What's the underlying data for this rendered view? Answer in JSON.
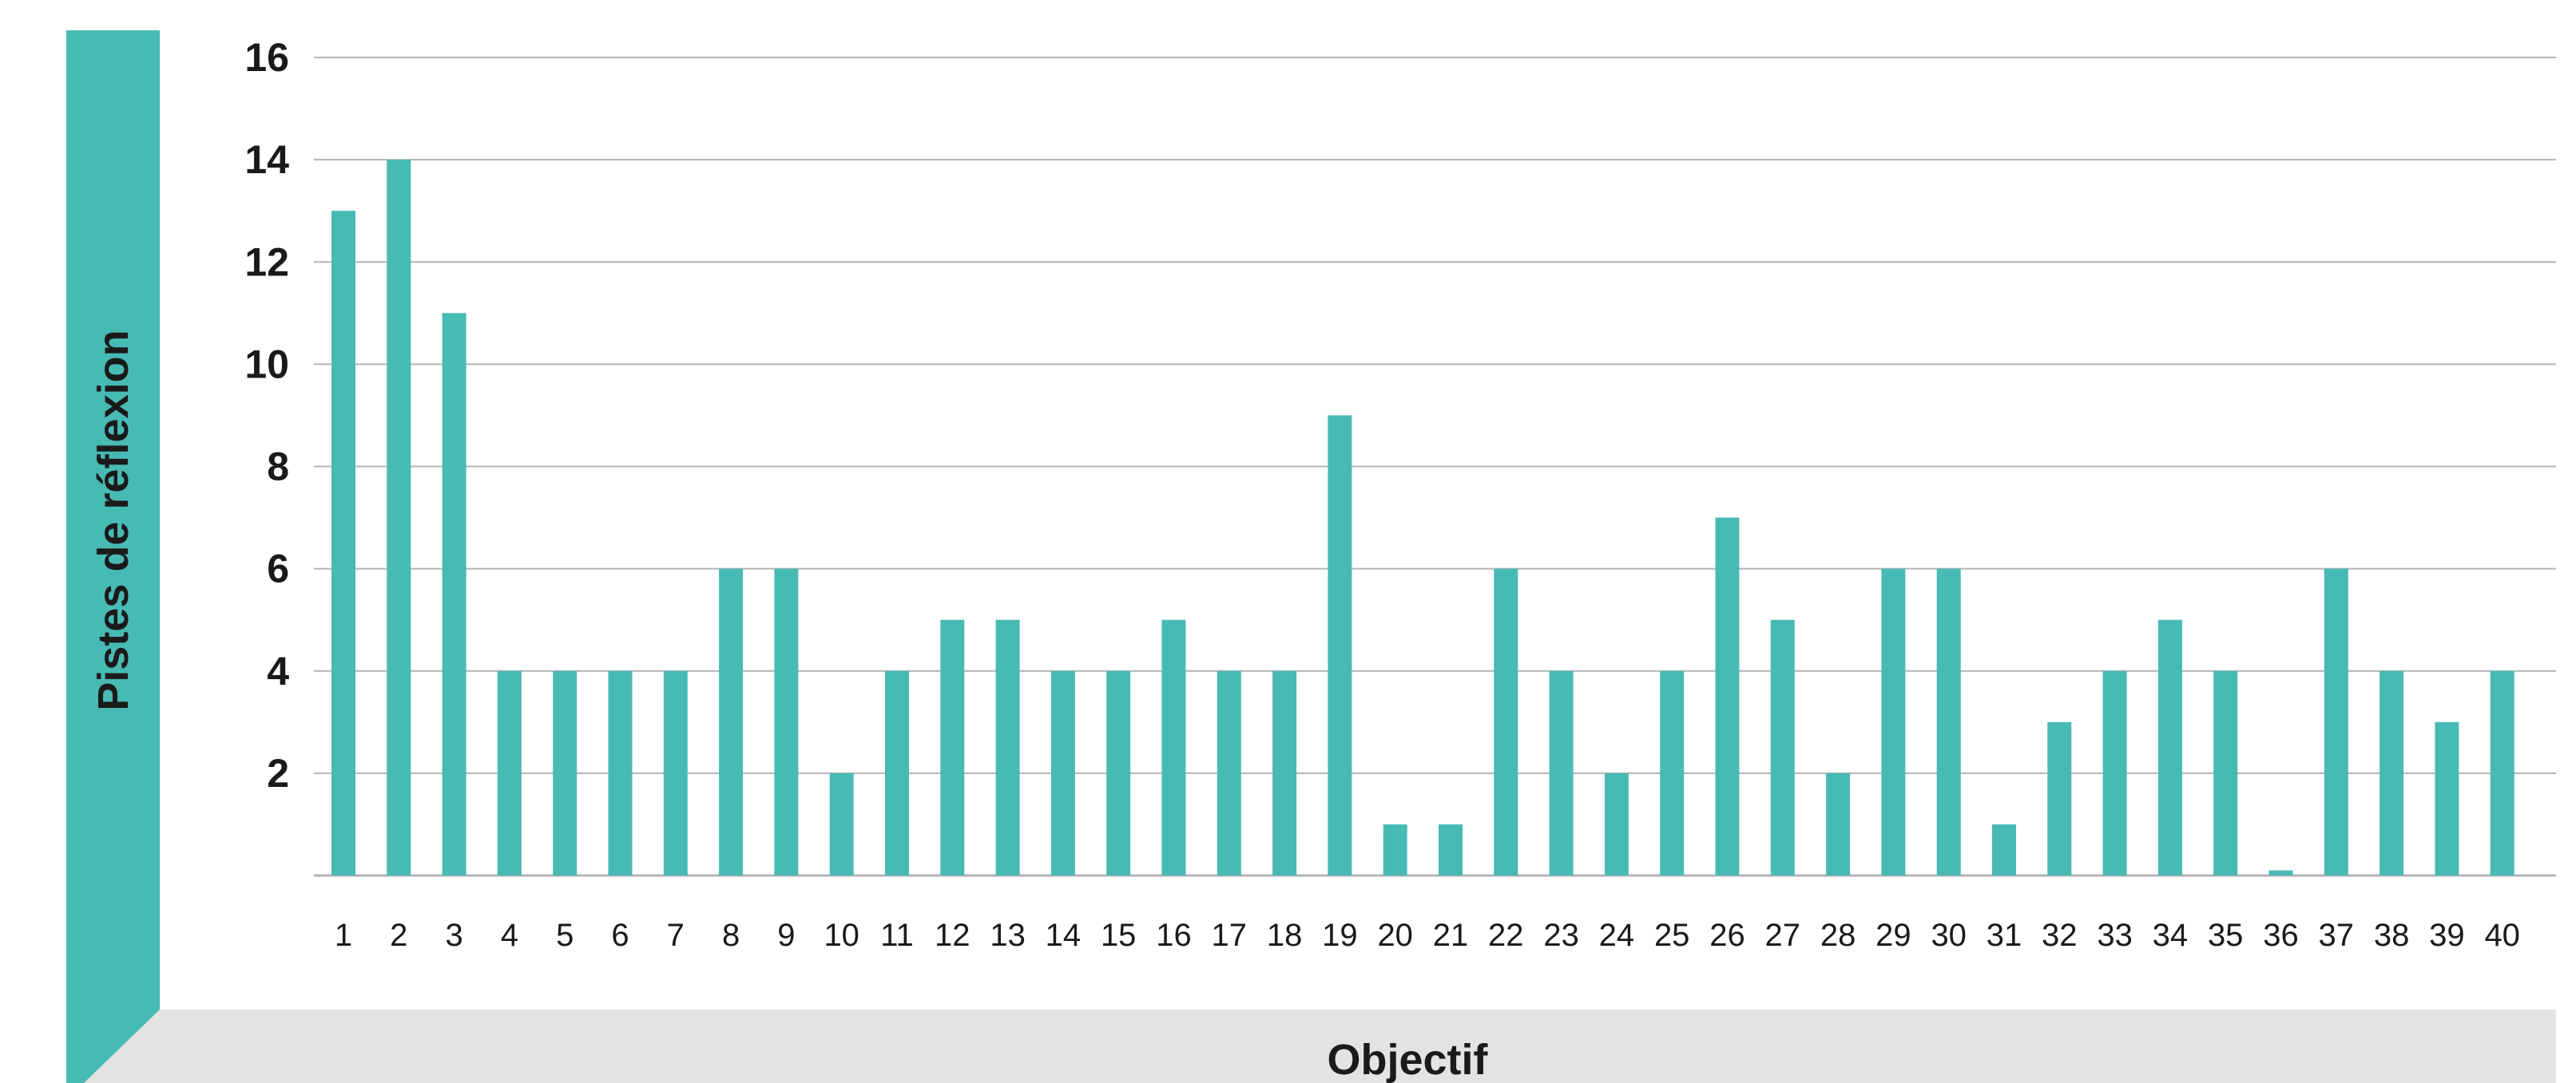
{
  "chart_data": {
    "type": "bar",
    "xlabel": "Objectif",
    "ylabel": "Pistes de réflexion",
    "categories": [
      "1",
      "2",
      "3",
      "4",
      "5",
      "6",
      "7",
      "8",
      "9",
      "10",
      "11",
      "12",
      "13",
      "14",
      "15",
      "16",
      "17",
      "18",
      "19",
      "20",
      "21",
      "22",
      "23",
      "24",
      "25",
      "26",
      "27",
      "28",
      "29",
      "30",
      "31",
      "32",
      "33",
      "34",
      "35",
      "36",
      "37",
      "38",
      "39",
      "40"
    ],
    "values": [
      13,
      14,
      11,
      4,
      4,
      4,
      4,
      6,
      6,
      2,
      4,
      5,
      5,
      4,
      4,
      5,
      4,
      4,
      9,
      1,
      1,
      6,
      4,
      2,
      4,
      7,
      5,
      2,
      6,
      6,
      1,
      3,
      4,
      5,
      4,
      0.1,
      6,
      4,
      3,
      4
    ],
    "ylim": [
      0,
      16
    ],
    "yticks": [
      2,
      4,
      6,
      8,
      10,
      12,
      14,
      16
    ],
    "grid": true,
    "legend": "none"
  },
  "colors": {
    "bar": "#48bab4",
    "band_teal": "#48bab4",
    "band_gray": "#e3e3e3",
    "grid": "#b4b4b4",
    "text": "#1a1a1a"
  }
}
